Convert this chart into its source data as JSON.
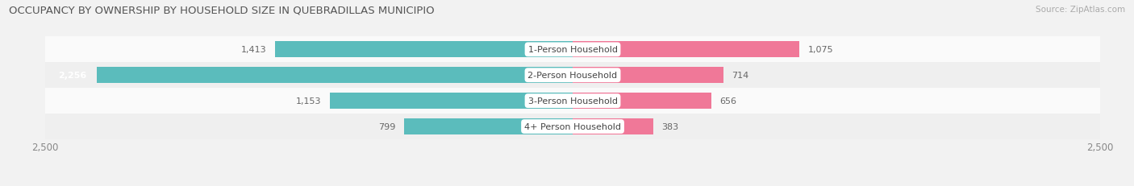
{
  "title": "OCCUPANCY BY OWNERSHIP BY HOUSEHOLD SIZE IN QUEBRADILLAS MUNICIPIO",
  "source": "Source: ZipAtlas.com",
  "categories": [
    "1-Person Household",
    "2-Person Household",
    "3-Person Household",
    "4+ Person Household"
  ],
  "owner_values": [
    1413,
    2256,
    1153,
    799
  ],
  "renter_values": [
    1075,
    714,
    656,
    383
  ],
  "owner_color": "#5bbcbc",
  "renter_color": "#f07898",
  "background_color": "#f2f2f2",
  "max_val": 2500,
  "title_fontsize": 9.5,
  "label_fontsize": 8.0,
  "tick_fontsize": 8.5,
  "legend_fontsize": 8.0,
  "source_fontsize": 7.5,
  "bar_height": 0.62,
  "row_colors": [
    "#fafafa",
    "#efefef",
    "#fafafa",
    "#efefef"
  ]
}
